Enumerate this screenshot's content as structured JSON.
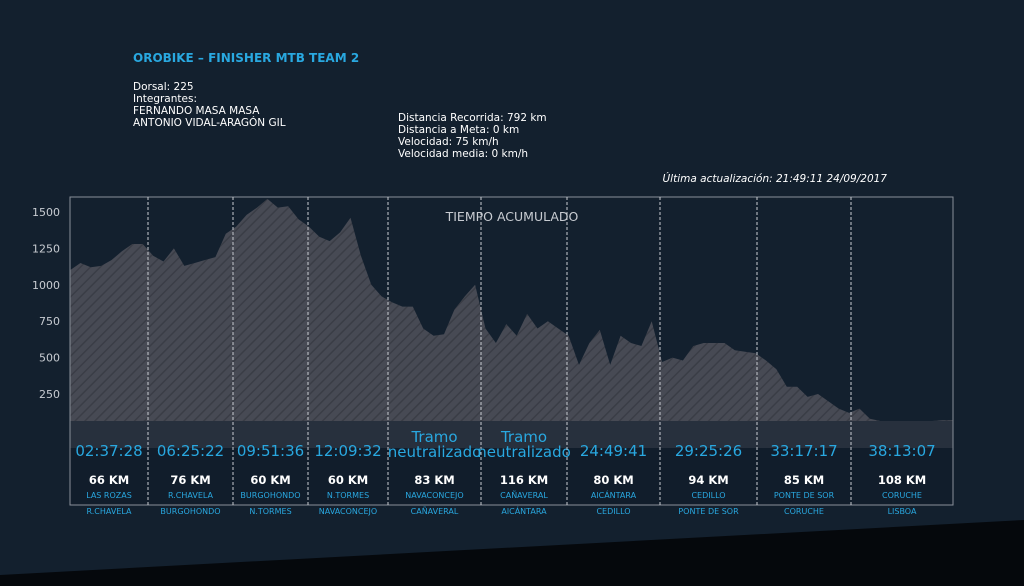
{
  "header": {
    "title": "OROBIKE – FINISHER MTB TEAM 2",
    "dorsal": "Dorsal: 225",
    "integrantes_label": "Integrantes:",
    "members": [
      "FERNANDO MASA MASA",
      "ANTONIO VIDAL-ARAGÓN GIL"
    ],
    "distancia_recorrida": "Distancia Recorrida: 792 km",
    "distancia_meta": "Distancia a Meta: 0 km",
    "velocidad": "Velocidad: 75 km/h",
    "velocidad_media": "Velocidad media: 0 km/h",
    "ultima_actualizacion": "Última actualización: 21:49:11 24/09/2017"
  },
  "colors": {
    "accent": "#29a8e0",
    "background": "#13202e",
    "profile": "#4a4d57"
  },
  "chart_data": {
    "type": "area",
    "title": "TIEMPO ACUMULADO",
    "ylim": [
      0,
      1600
    ],
    "yticks": [
      250,
      500,
      750,
      1000,
      1250,
      1500
    ],
    "grid": false,
    "profile": [
      1100,
      1150,
      1120,
      1130,
      1170,
      1230,
      1280,
      1280,
      1200,
      1160,
      1250,
      1130,
      1150,
      1170,
      1190,
      1350,
      1400,
      1480,
      1530,
      1590,
      1530,
      1540,
      1450,
      1400,
      1330,
      1300,
      1360,
      1460,
      1200,
      1000,
      920,
      880,
      850,
      850,
      700,
      650,
      660,
      830,
      920,
      1000,
      700,
      600,
      730,
      650,
      800,
      700,
      750,
      700,
      650,
      450,
      600,
      690,
      450,
      650,
      600,
      580,
      750,
      470,
      500,
      480,
      580,
      600,
      600,
      600,
      550,
      540,
      530,
      480,
      420,
      300,
      300,
      230,
      250,
      200,
      150,
      120,
      150,
      80,
      40,
      50,
      50,
      40,
      50,
      60,
      70,
      70
    ],
    "stages": [
      {
        "time": "02:37:28",
        "km": "66 KM",
        "from": "LAS ROZAS",
        "to": "R.CHAVELA"
      },
      {
        "time": "06:25:22",
        "km": "76 KM",
        "from": "R.CHAVELA",
        "to": "BURGOHONDO"
      },
      {
        "time": "09:51:36",
        "km": "60 KM",
        "from": "BURGOHONDO",
        "to": "N.TORMES"
      },
      {
        "time": "12:09:32",
        "km": "60 KM",
        "from": "N.TORMES",
        "to": "NAVACONCEJO"
      },
      {
        "time": "Tramo neutralizado",
        "km": "83 KM",
        "from": "NAVACONCEJO",
        "to": "CAÑAVERAL"
      },
      {
        "time": "Tramo neutralizado",
        "km": "116 KM",
        "from": "CAÑAVERAL",
        "to": "AlCÁNTARA"
      },
      {
        "time": "24:49:41",
        "km": "80 KM",
        "from": "AlCÁNTARA",
        "to": "CEDILLO"
      },
      {
        "time": "29:25:26",
        "km": "94 KM",
        "from": "CEDILLO",
        "to": "PONTE DE SOR"
      },
      {
        "time": "33:17:17",
        "km": "85 KM",
        "from": "PONTE DE SOR",
        "to": "CORUCHE"
      },
      {
        "time": "38:13:07",
        "km": "108 KM",
        "from": "CORUCHE",
        "to": "LISBOA"
      }
    ]
  }
}
